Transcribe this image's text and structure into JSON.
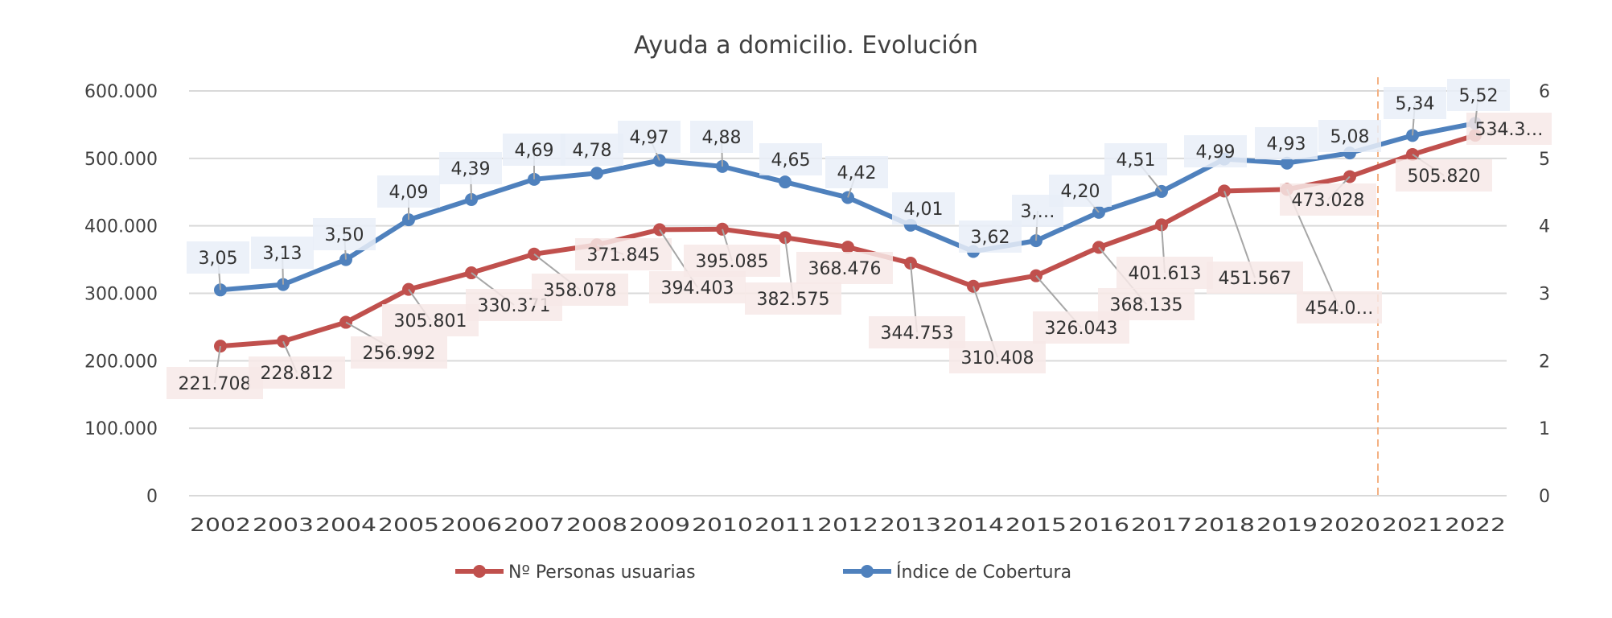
{
  "chart_data": {
    "type": "line",
    "title": "Ayuda a domicilio. Evolución",
    "xlabel": "",
    "ylabel": "",
    "categories": [
      "2002",
      "2003",
      "2004",
      "2005",
      "2006",
      "2007",
      "2008",
      "2009",
      "2010",
      "2011",
      "2012",
      "2013",
      "2014",
      "2015",
      "2016",
      "2017",
      "2018",
      "2019",
      "2020",
      "2021",
      "2022"
    ],
    "y_left": {
      "min": 0,
      "max": 600000,
      "ticks": [
        0,
        100000,
        200000,
        300000,
        400000,
        500000,
        600000
      ],
      "tick_labels": [
        "0",
        "100.000",
        "200.000",
        "300.000",
        "400.000",
        "500.000",
        "600.000"
      ]
    },
    "y_right": {
      "min": 0,
      "max": 6,
      "ticks": [
        0,
        1,
        2,
        3,
        4,
        5,
        6
      ],
      "tick_labels": [
        "0",
        "1",
        "2",
        "3",
        "4",
        "5",
        "6"
      ]
    },
    "grid": true,
    "legend_position": "bottom",
    "series": [
      {
        "name": "Nº Personas usuarias",
        "axis": "left",
        "color": "#c0504d",
        "values": [
          221708,
          228812,
          256992,
          305801,
          330371,
          358078,
          371845,
          394403,
          395085,
          382575,
          368476,
          344753,
          310408,
          326043,
          368135,
          401613,
          451567,
          454000,
          473028,
          505820,
          534300
        ],
        "labels": [
          "221.708",
          "228.812",
          "256.992",
          "305.801",
          "330.371",
          "358.078",
          "371.845",
          "394.403",
          "395.085",
          "382.575",
          "368.476",
          "344.753",
          "310.408",
          "326.043",
          "368.135",
          "401.613",
          "451.567",
          "454.0…",
          "473.028",
          "505.820",
          "534.3…"
        ]
      },
      {
        "name": "Índice de Cobertura",
        "axis": "right",
        "color": "#4f81bd",
        "values": [
          3.05,
          3.13,
          3.5,
          4.09,
          4.39,
          4.69,
          4.78,
          4.97,
          4.88,
          4.65,
          4.42,
          4.01,
          3.62,
          3.78,
          4.2,
          4.51,
          4.99,
          4.93,
          5.08,
          5.34,
          5.52
        ],
        "labels": [
          "3,05",
          "3,13",
          "3,50",
          "4,09",
          "4,39",
          "4,69",
          "4,78",
          "4,97",
          "4,88",
          "4,65",
          "4,42",
          "4,01",
          "3,62",
          "3,…",
          "4,20",
          "4,51",
          "4,99",
          "4,93",
          "5,08",
          "5,34",
          "5,52"
        ]
      }
    ],
    "annotations": [
      {
        "type": "vertical-dashed-line",
        "between": [
          "2020",
          "2021"
        ],
        "color": "#f4b183"
      }
    ]
  }
}
